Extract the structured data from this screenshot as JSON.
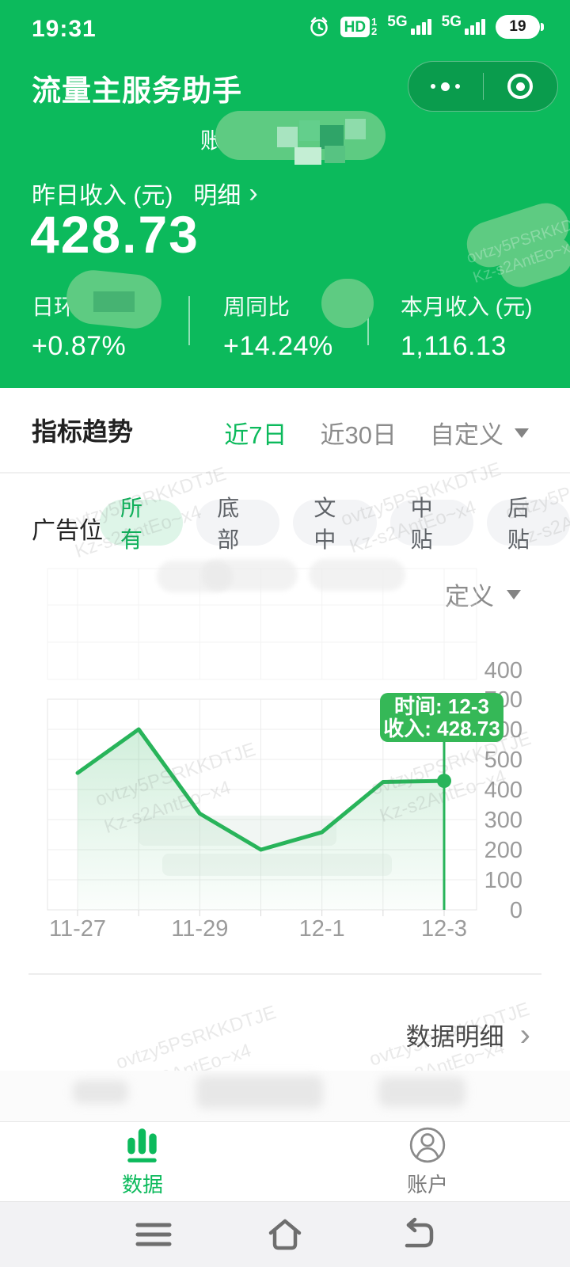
{
  "status_bar": {
    "time": "19:31",
    "hd": "HD",
    "hd_sub_top": "1",
    "hd_sub_bottom": "2",
    "net1": "5G",
    "net2": "5G",
    "battery": "19"
  },
  "header": {
    "title": "流量主服务助手"
  },
  "account_row": {
    "label": "账户"
  },
  "hero": {
    "income_label": "昨日收入 (元)",
    "detail_label": "明细",
    "chevron": "›",
    "amount": "428.73",
    "stats": [
      {
        "label": "日环比",
        "value": "+0.87%"
      },
      {
        "label": "周同比",
        "value": "+14.24%"
      },
      {
        "label": "本月收入 (元)",
        "value": "1,116.13"
      }
    ]
  },
  "trend_section": {
    "title": "指标趋势",
    "tabs": [
      {
        "label": "近7日"
      },
      {
        "label": "近30日"
      },
      {
        "label": "自定义"
      }
    ]
  },
  "ad_section": {
    "label": "广告位",
    "chips": [
      {
        "label": "所有"
      },
      {
        "label": "底部"
      },
      {
        "label": "文中"
      },
      {
        "label": "中贴"
      },
      {
        "label": "后贴"
      }
    ],
    "ghost_dropdown": "定义"
  },
  "chart_data": {
    "type": "line",
    "series_name": "收入",
    "x": [
      "11-27",
      "11-28",
      "11-29",
      "11-30",
      "12-1",
      "12-2",
      "12-3"
    ],
    "values": [
      455,
      600,
      320,
      200,
      258,
      425,
      428.73
    ],
    "x_tick_labels": [
      "11-27",
      "11-29",
      "12-1",
      "12-3"
    ],
    "y_ticks": [
      0,
      100,
      200,
      300,
      400,
      500,
      600,
      700
    ],
    "ylim": [
      0,
      700
    ],
    "grid": true,
    "y_axis_side": "right",
    "ghost_axis_label": "400",
    "selected_index": 6,
    "tooltip": {
      "line1": "时间: 12-3",
      "line2": "收入: 428.73"
    },
    "line_color": "#28B45A",
    "area_color": "#2FB45D",
    "tooltip_color": "#35B857",
    "axis_label_color": "#9B9B9B"
  },
  "footer_link": {
    "label": "数据明细",
    "chevron": "›"
  },
  "tab_bar": {
    "items": [
      {
        "label": "数据"
      },
      {
        "label": "账户"
      }
    ]
  },
  "watermark": {
    "line1": "ovtzy5PSRKKDTJE",
    "line2": "Kz-s2AntEo~x4"
  }
}
